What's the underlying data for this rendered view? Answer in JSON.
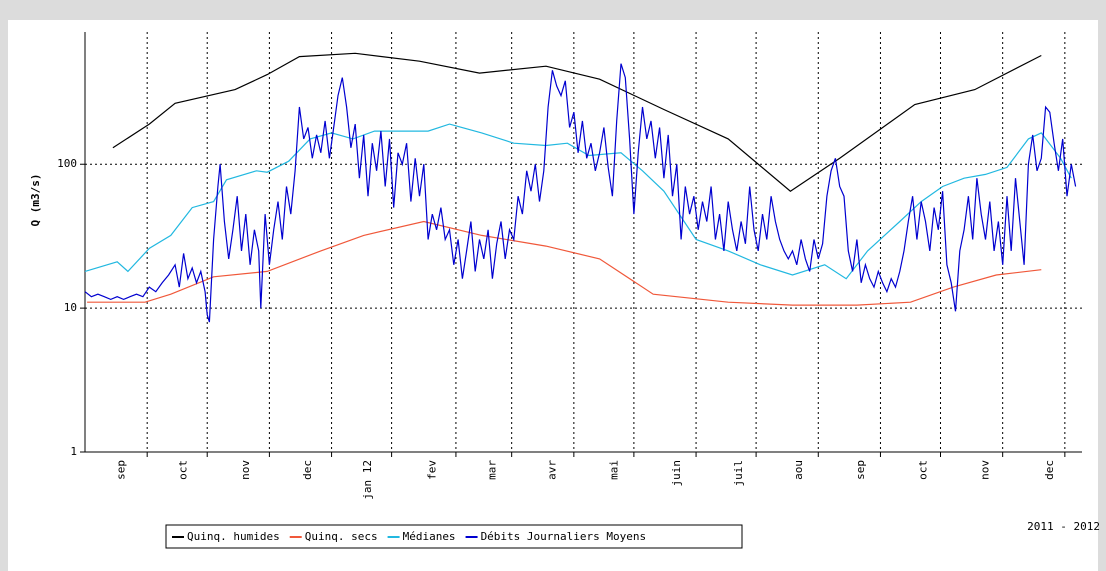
{
  "chart_data": {
    "type": "line",
    "y_label": "Q (m3/s)",
    "annotation": "2011 - 2012",
    "log_scale_y": true,
    "grid": true,
    "xlim": [
      0,
      465
    ],
    "ylim": [
      1,
      830
    ],
    "yticks": [
      1,
      10,
      100
    ],
    "xticks": [
      {
        "value": 17,
        "label": "sep"
      },
      {
        "value": 46,
        "label": "oct"
      },
      {
        "value": 75,
        "label": "nov"
      },
      {
        "value": 104,
        "label": "dec"
      },
      {
        "value": 132,
        "label": "jan 12"
      },
      {
        "value": 162,
        "label": "fev"
      },
      {
        "value": 190,
        "label": "mar"
      },
      {
        "value": 218,
        "label": "avr"
      },
      {
        "value": 247,
        "label": "mai"
      },
      {
        "value": 276,
        "label": "juin"
      },
      {
        "value": 305,
        "label": "juil"
      },
      {
        "value": 333,
        "label": "aou"
      },
      {
        "value": 362,
        "label": "sep"
      },
      {
        "value": 391,
        "label": "oct"
      },
      {
        "value": 420,
        "label": "nov"
      },
      {
        "value": 450,
        "label": "dec"
      }
    ],
    "xgrid": [
      29,
      57,
      86,
      115,
      143,
      173,
      199,
      228,
      256,
      285,
      313,
      342,
      371,
      399,
      428,
      457
    ],
    "series": [
      {
        "name": "Quinq. humides",
        "color": "#000000",
        "x": [
          13,
          30,
          42,
          70,
          85,
          100,
          126,
          156,
          184,
          215,
          240,
          270,
          300,
          329,
          352,
          387,
          415,
          446
        ],
        "values": [
          130,
          190,
          265,
          330,
          420,
          560,
          590,
          520,
          430,
          480,
          390,
          240,
          150,
          65,
          110,
          260,
          330,
          570
        ]
      },
      {
        "name": "Quinq. secs",
        "color": "#f0583a",
        "x": [
          1,
          28,
          40,
          60,
          85,
          110,
          130,
          158,
          185,
          215,
          240,
          265,
          300,
          330,
          360,
          385,
          405,
          425,
          446
        ],
        "values": [
          11,
          11,
          12.5,
          16.5,
          18,
          25,
          32,
          40,
          32,
          27,
          22,
          12.5,
          11,
          10.5,
          10.5,
          11,
          14,
          17,
          18.5
        ]
      },
      {
        "name": "Médianes",
        "color": "#22b8e0",
        "x": [
          0,
          15,
          20,
          30,
          40,
          50,
          60,
          66,
          80,
          85,
          95,
          105,
          115,
          125,
          135,
          160,
          170,
          185,
          200,
          215,
          225,
          235,
          250,
          260,
          270,
          285,
          300,
          315,
          330,
          345,
          355,
          365,
          380,
          390,
          400,
          410,
          420,
          430,
          440,
          446,
          455,
          460
        ],
        "values": [
          18,
          21,
          18,
          26,
          32,
          50,
          55,
          78,
          90,
          88,
          105,
          150,
          165,
          150,
          170,
          170,
          190,
          165,
          140,
          135,
          140,
          115,
          120,
          90,
          65,
          30,
          25,
          20,
          17,
          20,
          16,
          25,
          40,
          55,
          70,
          80,
          85,
          95,
          150,
          165,
          110,
          80
        ]
      },
      {
        "name": "Débits Journaliers Moyens",
        "color": "#0000d0",
        "x": [
          0,
          3,
          6,
          9,
          12,
          15,
          18,
          21,
          24,
          27,
          30,
          33,
          36,
          39,
          42,
          44,
          46,
          48,
          50,
          52,
          54,
          56,
          57,
          58,
          60,
          62,
          63,
          65,
          67,
          69,
          71,
          73,
          75,
          77,
          79,
          81,
          82,
          84,
          86,
          88,
          90,
          92,
          94,
          96,
          98,
          100,
          102,
          104,
          106,
          108,
          110,
          112,
          114,
          116,
          118,
          120,
          122,
          124,
          126,
          128,
          130,
          132,
          134,
          136,
          138,
          140,
          142,
          144,
          146,
          148,
          150,
          152,
          154,
          156,
          158,
          160,
          162,
          164,
          166,
          168,
          170,
          172,
          174,
          176,
          178,
          180,
          182,
          184,
          186,
          188,
          190,
          192,
          194,
          196,
          198,
          200,
          202,
          204,
          206,
          208,
          210,
          212,
          214,
          216,
          218,
          220,
          222,
          224,
          226,
          228,
          230,
          232,
          234,
          236,
          238,
          240,
          242,
          244,
          246,
          248,
          250,
          252,
          254,
          256,
          258,
          260,
          262,
          264,
          266,
          268,
          270,
          272,
          274,
          276,
          278,
          280,
          282,
          284,
          286,
          288,
          290,
          292,
          294,
          296,
          298,
          300,
          302,
          304,
          306,
          308,
          310,
          312,
          314,
          316,
          318,
          320,
          322,
          324,
          326,
          328,
          330,
          332,
          334,
          336,
          338,
          340,
          342,
          344,
          346,
          348,
          350,
          352,
          354,
          356,
          358,
          360,
          362,
          364,
          366,
          368,
          370,
          372,
          374,
          376,
          378,
          380,
          382,
          384,
          386,
          388,
          390,
          392,
          394,
          396,
          398,
          400,
          402,
          404,
          406,
          408,
          410,
          412,
          414,
          416,
          418,
          420,
          422,
          424,
          426,
          428,
          430,
          432,
          434,
          436,
          438,
          440,
          442,
          444,
          446,
          448,
          450,
          452,
          454,
          456,
          458,
          460,
          462
        ],
        "values": [
          13,
          12,
          12.5,
          12,
          11.5,
          12,
          11.5,
          12,
          12.5,
          12,
          14,
          13,
          15,
          17,
          20,
          14,
          24,
          16,
          19,
          15,
          18,
          13,
          9,
          8,
          30,
          70,
          100,
          40,
          22,
          35,
          60,
          25,
          45,
          20,
          35,
          25,
          10,
          45,
          20,
          35,
          55,
          30,
          70,
          45,
          90,
          250,
          150,
          180,
          110,
          160,
          120,
          200,
          110,
          180,
          300,
          400,
          250,
          130,
          190,
          80,
          160,
          60,
          140,
          90,
          170,
          70,
          150,
          50,
          120,
          100,
          140,
          55,
          110,
          60,
          100,
          30,
          45,
          35,
          50,
          30,
          35,
          20,
          30,
          16,
          25,
          40,
          18,
          30,
          22,
          35,
          16,
          28,
          40,
          22,
          35,
          30,
          60,
          45,
          90,
          65,
          100,
          55,
          90,
          250,
          450,
          350,
          300,
          380,
          180,
          230,
          120,
          200,
          110,
          140,
          90,
          120,
          180,
          95,
          60,
          200,
          500,
          400,
          150,
          45,
          120,
          250,
          150,
          200,
          110,
          180,
          80,
          160,
          60,
          100,
          30,
          70,
          45,
          60,
          35,
          55,
          40,
          70,
          30,
          45,
          25,
          55,
          35,
          25,
          40,
          28,
          70,
          35,
          25,
          45,
          30,
          60,
          40,
          30,
          25,
          22,
          25,
          20,
          30,
          22,
          18,
          30,
          22,
          28,
          60,
          90,
          110,
          70,
          60,
          25,
          18,
          30,
          15,
          20,
          16,
          14,
          18,
          15,
          13,
          16,
          14,
          18,
          25,
          40,
          60,
          30,
          55,
          40,
          25,
          50,
          35,
          65,
          20,
          15,
          9.5,
          25,
          35,
          60,
          30,
          80,
          45,
          30,
          55,
          25,
          40,
          20,
          60,
          25,
          80,
          40,
          20,
          100,
          160,
          90,
          110,
          250,
          230,
          140,
          90,
          150,
          60,
          100,
          70
        ]
      }
    ]
  }
}
